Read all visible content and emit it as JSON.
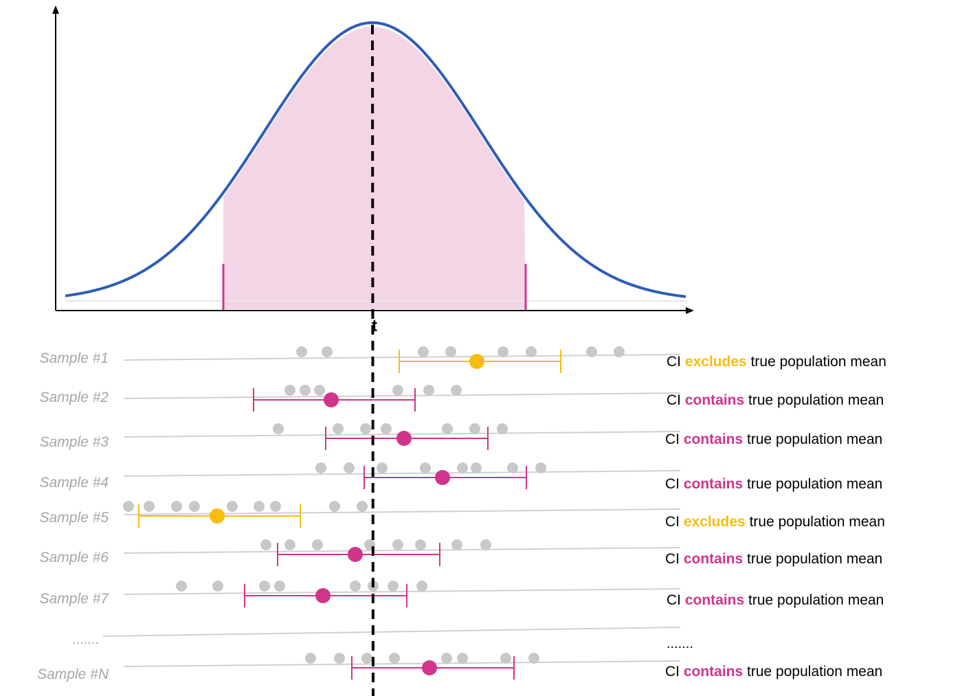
{
  "t_label": "t",
  "colors": {
    "curve": "#2e5cb8",
    "fill": "#f4d5e6",
    "contains": "#d1348b",
    "excludes": "#f7bd0e",
    "point": "#c8c8c8",
    "baseline": "#d0d0d0",
    "label": "#a6a6a6"
  },
  "samples": [
    {
      "label": "Sample #1",
      "status": "excludes",
      "pre": "CI ",
      "word": "excludes",
      "post": " true population mean"
    },
    {
      "label": "Sample #2",
      "status": "contains",
      "pre": "CI ",
      "word": "contains",
      "post": " true population mean"
    },
    {
      "label": "Sample #3",
      "status": "contains",
      "pre": "CI ",
      "word": "contains",
      "post": " true population mean"
    },
    {
      "label": "Sample #4",
      "status": "contains",
      "pre": "CI ",
      "word": "contains",
      "post": " true population mean"
    },
    {
      "label": "Sample #5",
      "status": "excludes",
      "pre": "CI ",
      "word": "excludes",
      "post": " true population mean"
    },
    {
      "label": "Sample #6",
      "status": "contains",
      "pre": "CI ",
      "word": "contains",
      "post": " true population mean"
    },
    {
      "label": "Sample #7",
      "status": "contains",
      "pre": "CI ",
      "word": "contains",
      "post": " true population mean"
    },
    {
      "label": "Sample #N",
      "status": "contains",
      "pre": "CI ",
      "word": "contains",
      "post": " true population mean"
    }
  ],
  "ellipsis_left": ".......",
  "ellipsis_right": "......."
}
